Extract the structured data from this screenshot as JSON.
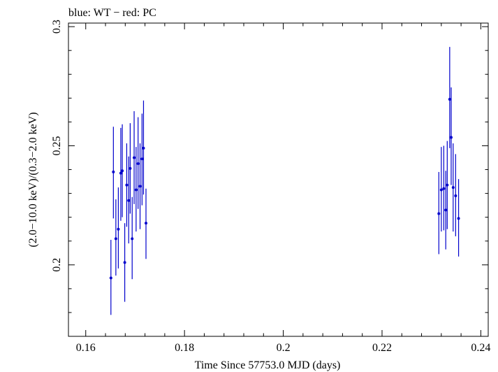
{
  "chart_data": {
    "type": "scatter",
    "title": "blue: WT − red: PC",
    "xlabel": "Time Since 57753.0 MJD (days)",
    "ylabel": "(2.0−10.0 keV)/(0.3−2.0 keV)",
    "xlim": [
      0.1565,
      0.2415
    ],
    "ylim": [
      0.17,
      0.3015
    ],
    "x_ticks": [
      0.16,
      0.18,
      0.2,
      0.22,
      0.24
    ],
    "x_tick_labels": [
      "0.16",
      "0.18",
      "0.2",
      "0.22",
      "0.24"
    ],
    "y_ticks": [
      0.2,
      0.25,
      0.3
    ],
    "y_tick_labels": [
      "0.2",
      "0.25",
      "0.3"
    ],
    "grid": false,
    "colors": {
      "WT": "#0000cc",
      "PC": "#cc0000"
    },
    "series": [
      {
        "points": [
          {
            "x": 0.1651,
            "y": 0.1945,
            "lo": 0.179,
            "hi": 0.2105
          },
          {
            "x": 0.1656,
            "y": 0.239,
            "lo": 0.2195,
            "hi": 0.258
          },
          {
            "x": 0.1661,
            "y": 0.211,
            "lo": 0.1955,
            "hi": 0.2275
          },
          {
            "x": 0.1666,
            "y": 0.215,
            "lo": 0.1985,
            "hi": 0.2325
          },
          {
            "x": 0.1671,
            "y": 0.2385,
            "lo": 0.2185,
            "hi": 0.2575
          },
          {
            "x": 0.1674,
            "y": 0.2395,
            "lo": 0.22,
            "hi": 0.259
          },
          {
            "x": 0.1679,
            "y": 0.201,
            "lo": 0.1845,
            "hi": 0.2175
          },
          {
            "x": 0.1683,
            "y": 0.2335,
            "lo": 0.216,
            "hi": 0.251
          },
          {
            "x": 0.1687,
            "y": 0.227,
            "lo": 0.209,
            "hi": 0.2455
          },
          {
            "x": 0.169,
            "y": 0.2405,
            "lo": 0.2215,
            "hi": 0.2595
          },
          {
            "x": 0.1694,
            "y": 0.211,
            "lo": 0.194,
            "hi": 0.2285
          },
          {
            "x": 0.1698,
            "y": 0.245,
            "lo": 0.2255,
            "hi": 0.2645
          },
          {
            "x": 0.1702,
            "y": 0.2315,
            "lo": 0.214,
            "hi": 0.2495
          },
          {
            "x": 0.1706,
            "y": 0.2425,
            "lo": 0.2235,
            "hi": 0.262
          },
          {
            "x": 0.171,
            "y": 0.233,
            "lo": 0.215,
            "hi": 0.251
          },
          {
            "x": 0.1714,
            "y": 0.2445,
            "lo": 0.225,
            "hi": 0.2635
          },
          {
            "x": 0.1717,
            "y": 0.249,
            "lo": 0.2295,
            "hi": 0.269
          },
          {
            "x": 0.1722,
            "y": 0.2175,
            "lo": 0.2025,
            "hi": 0.232
          },
          {
            "x": 0.2315,
            "y": 0.2215,
            "lo": 0.2045,
            "hi": 0.239
          },
          {
            "x": 0.232,
            "y": 0.2315,
            "lo": 0.214,
            "hi": 0.2495
          },
          {
            "x": 0.2325,
            "y": 0.232,
            "lo": 0.2145,
            "hi": 0.25
          },
          {
            "x": 0.2329,
            "y": 0.223,
            "lo": 0.2065,
            "hi": 0.2395
          },
          {
            "x": 0.2332,
            "y": 0.2335,
            "lo": 0.215,
            "hi": 0.252
          },
          {
            "x": 0.2337,
            "y": 0.2695,
            "lo": 0.249,
            "hi": 0.2915
          },
          {
            "x": 0.234,
            "y": 0.2535,
            "lo": 0.2335,
            "hi": 0.2745
          },
          {
            "x": 0.2344,
            "y": 0.2325,
            "lo": 0.214,
            "hi": 0.251
          },
          {
            "x": 0.2349,
            "y": 0.229,
            "lo": 0.212,
            "hi": 0.2465
          },
          {
            "x": 0.2355,
            "y": 0.2195,
            "lo": 0.2035,
            "hi": 0.236
          }
        ]
      }
    ]
  }
}
